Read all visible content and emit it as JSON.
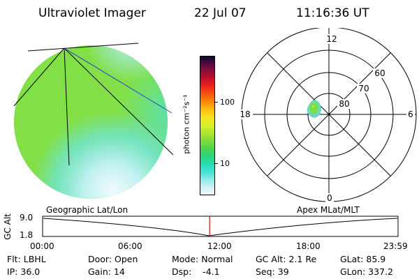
{
  "header": {
    "title": "Ultraviolet Imager",
    "date": "22 Jul 07",
    "time": "11:16:36 UT"
  },
  "colorbar": {
    "unit_label": "photon cm⁻²s⁻¹",
    "ticks": [
      "100",
      "10"
    ],
    "colors": [
      "#0b0b2a",
      "#5a0a45",
      "#8f0f35",
      "#c8102a",
      "#ee2a18",
      "#f55a10",
      "#fb8c0a",
      "#fdbf12",
      "#f6e41e",
      "#d8ef2a",
      "#aee52e",
      "#80dc3a",
      "#4ed44e",
      "#2bd47c",
      "#26dcb0",
      "#3fe2d4",
      "#8ee9ea",
      "#cdf1f4",
      "#f1f8fa"
    ]
  },
  "polar_plot": {
    "mlt_labels": [
      "12",
      "18",
      "6",
      "0"
    ],
    "mlat_labels": [
      "60",
      "70",
      "80"
    ]
  },
  "timeline": {
    "left_label": "Geographic Lat/Lon",
    "right_label": "Apex MLat/MLT",
    "axis_label": "GC Alt",
    "y_ticks": [
      "9.0",
      "1.8"
    ],
    "x_ticks": [
      "00:00",
      "06:00",
      "12:00",
      "18:00",
      "23:59"
    ],
    "current_time_fraction": 0.47
  },
  "footer": {
    "row1": [
      {
        "name": "filter",
        "text": "Flt: LBHL"
      },
      {
        "name": "door",
        "text": "Door: Open"
      },
      {
        "name": "mode",
        "text": "Mode: Normal"
      },
      {
        "name": "gc-alt",
        "text": "GC Alt: 2.1 Re"
      },
      {
        "name": "glat",
        "text": "GLat: 85.9"
      }
    ],
    "row2": [
      {
        "name": "ip",
        "text": "IP: 36.0"
      },
      {
        "name": "gain",
        "text": "Gain: 14"
      },
      {
        "name": "dsp",
        "text": "Dsp:    -4.1"
      },
      {
        "name": "seq",
        "text": "Seq: 39"
      },
      {
        "name": "glon",
        "text": "GLon: 337.2"
      }
    ]
  }
}
